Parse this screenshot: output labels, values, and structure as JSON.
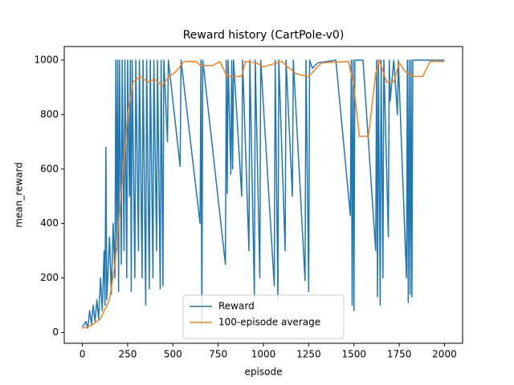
{
  "chart_data": {
    "type": "line",
    "title": "Reward history (CartPole-v0)",
    "x_label": "episode",
    "y_label": "mean_reward",
    "xlim": [
      -100,
      2100
    ],
    "ylim": [
      -40,
      1050
    ],
    "xticks": [
      0,
      250,
      500,
      750,
      1000,
      1250,
      1500,
      1750,
      2000
    ],
    "yticks": [
      0,
      200,
      400,
      600,
      800,
      1000
    ],
    "legend": "lower center",
    "series": [
      {
        "name": "Reward",
        "color": "#1f77b4",
        "x": [
          0,
          20,
          30,
          40,
          50,
          60,
          70,
          80,
          90,
          100,
          110,
          120,
          125,
          130,
          135,
          150,
          160,
          170,
          180,
          185,
          190,
          195,
          200,
          205,
          215,
          220,
          230,
          235,
          245,
          250,
          260,
          265,
          270,
          275,
          290,
          295,
          310,
          315,
          330,
          335,
          350,
          355,
          370,
          375,
          390,
          395,
          410,
          415,
          430,
          435,
          445,
          450,
          470,
          475,
          540,
          545,
          650,
          655,
          660,
          665,
          790,
          795,
          800,
          805,
          820,
          825,
          830,
          835,
          880,
          885,
          920,
          925,
          950,
          955,
          980,
          985,
          1060,
          1065,
          1080,
          1085,
          1120,
          1125,
          1160,
          1165,
          1230,
          1235,
          1250,
          1255,
          1270,
          1300,
          1400,
          1480,
          1485,
          1490,
          1495,
          1500,
          1505,
          1550,
          1620,
          1625,
          1630,
          1635,
          1645,
          1650,
          1660,
          1665,
          1690,
          1695,
          1700,
          1720,
          1740,
          1745,
          1790,
          1795,
          1800,
          1805,
          1810,
          1815,
          1820,
          1825,
          1830,
          1900,
          2000
        ],
        "values": [
          20,
          40,
          15,
          80,
          30,
          100,
          40,
          120,
          50,
          200,
          80,
          300,
          100,
          680,
          120,
          350,
          140,
          400,
          200,
          1000,
          300,
          1000,
          150,
          1000,
          250,
          1000,
          300,
          1000,
          200,
          1000,
          500,
          1000,
          150,
          1000,
          200,
          1000,
          300,
          1000,
          200,
          1000,
          100,
          1000,
          160,
          1000,
          200,
          1000,
          300,
          1000,
          160,
          1000,
          170,
          1000,
          700,
          1000,
          610,
          1000,
          400,
          1000,
          20,
          1000,
          250,
          1000,
          510,
          1000,
          580,
          1000,
          600,
          1000,
          500,
          1000,
          300,
          1000,
          130,
          1000,
          200,
          1000,
          170,
          1000,
          120,
          1000,
          300,
          1000,
          500,
          1000,
          190,
          1000,
          150,
          1000,
          970,
          990,
          1000,
          430,
          1000,
          100,
          1000,
          80,
          1000,
          1000,
          300,
          1000,
          130,
          1000,
          100,
          1000,
          200,
          1000,
          350,
          1000,
          850,
          1000,
          800,
          1000,
          200,
          1000,
          110,
          1000,
          140,
          1000,
          130,
          1000,
          1000,
          1000,
          1000
        ]
      },
      {
        "name": "100-episode average",
        "color": "#ff7f0e",
        "x": [
          0,
          50,
          100,
          150,
          180,
          220,
          250,
          280,
          320,
          360,
          400,
          440,
          480,
          520,
          560,
          630,
          650,
          720,
          760,
          800,
          880,
          900,
          960,
          1000,
          1100,
          1180,
          1250,
          1320,
          1470,
          1500,
          1530,
          1580,
          1620,
          1640,
          1680,
          1720,
          1750,
          1780,
          1820,
          1880,
          1920,
          2000
        ],
        "values": [
          15,
          25,
          50,
          120,
          250,
          550,
          800,
          920,
          940,
          920,
          930,
          905,
          940,
          960,
          995,
          995,
          980,
          980,
          995,
          940,
          940,
          995,
          990,
          975,
          995,
          950,
          940,
          990,
          995,
          900,
          720,
          720,
          950,
          1000,
          920,
          920,
          990,
          960,
          940,
          940,
          995,
          995
        ]
      }
    ]
  }
}
